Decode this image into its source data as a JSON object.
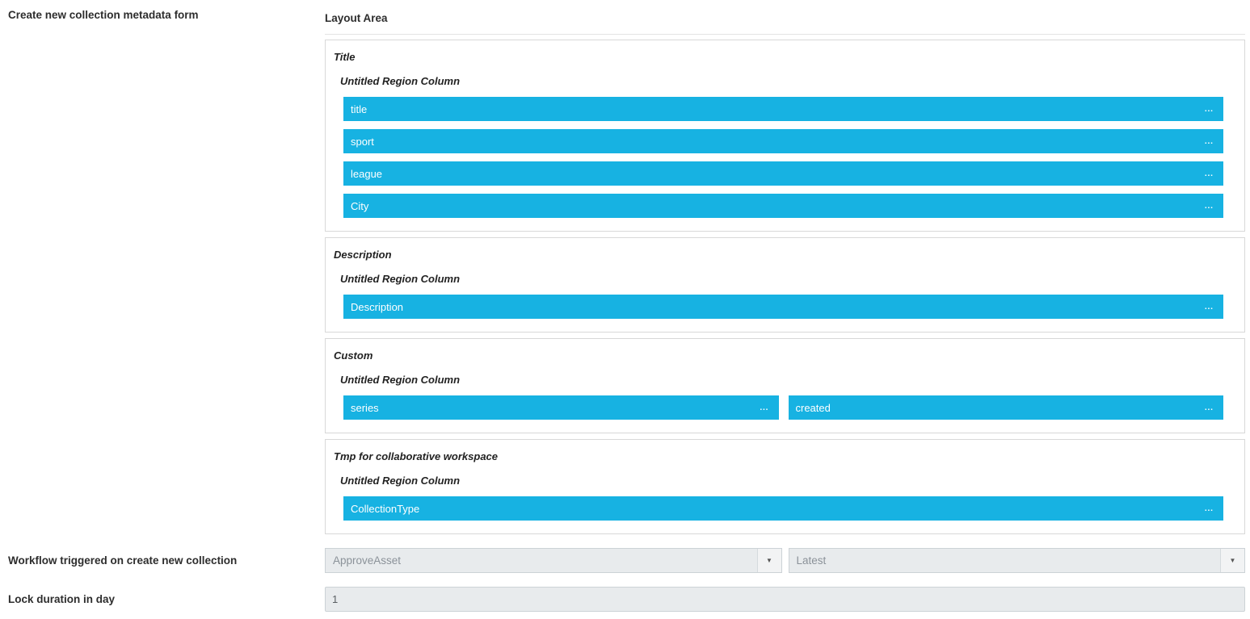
{
  "labels": {
    "form_title": "Create new collection metadata form",
    "workflow": "Workflow triggered on create new collection",
    "lock": "Lock duration in day"
  },
  "layout_area": {
    "title": "Layout Area",
    "sections": [
      {
        "title": "Title",
        "region": "Untitled Region Column",
        "layout": "stack",
        "fields": [
          "title",
          "sport",
          "league",
          "City"
        ]
      },
      {
        "title": "Description",
        "region": "Untitled Region Column",
        "layout": "stack",
        "fields": [
          "Description"
        ]
      },
      {
        "title": "Custom",
        "region": "Untitled Region Column",
        "layout": "row",
        "fields": [
          "series",
          "created"
        ]
      },
      {
        "title": "Tmp for collaborative workspace",
        "region": "Untitled Region Column",
        "layout": "stack",
        "fields": [
          "CollectionType"
        ]
      }
    ]
  },
  "workflow": {
    "selected_workflow": "ApproveAsset",
    "selected_version": "Latest"
  },
  "lock": {
    "value": "1"
  },
  "icons": {
    "drag_handle": "▪▪▪",
    "dropdown_arrow": "▼"
  },
  "colors": {
    "field_bar": "#17b2e2",
    "section_border": "#d8d8d8",
    "control_bg": "#e8ebed",
    "control_border": "#ccd2d6"
  }
}
